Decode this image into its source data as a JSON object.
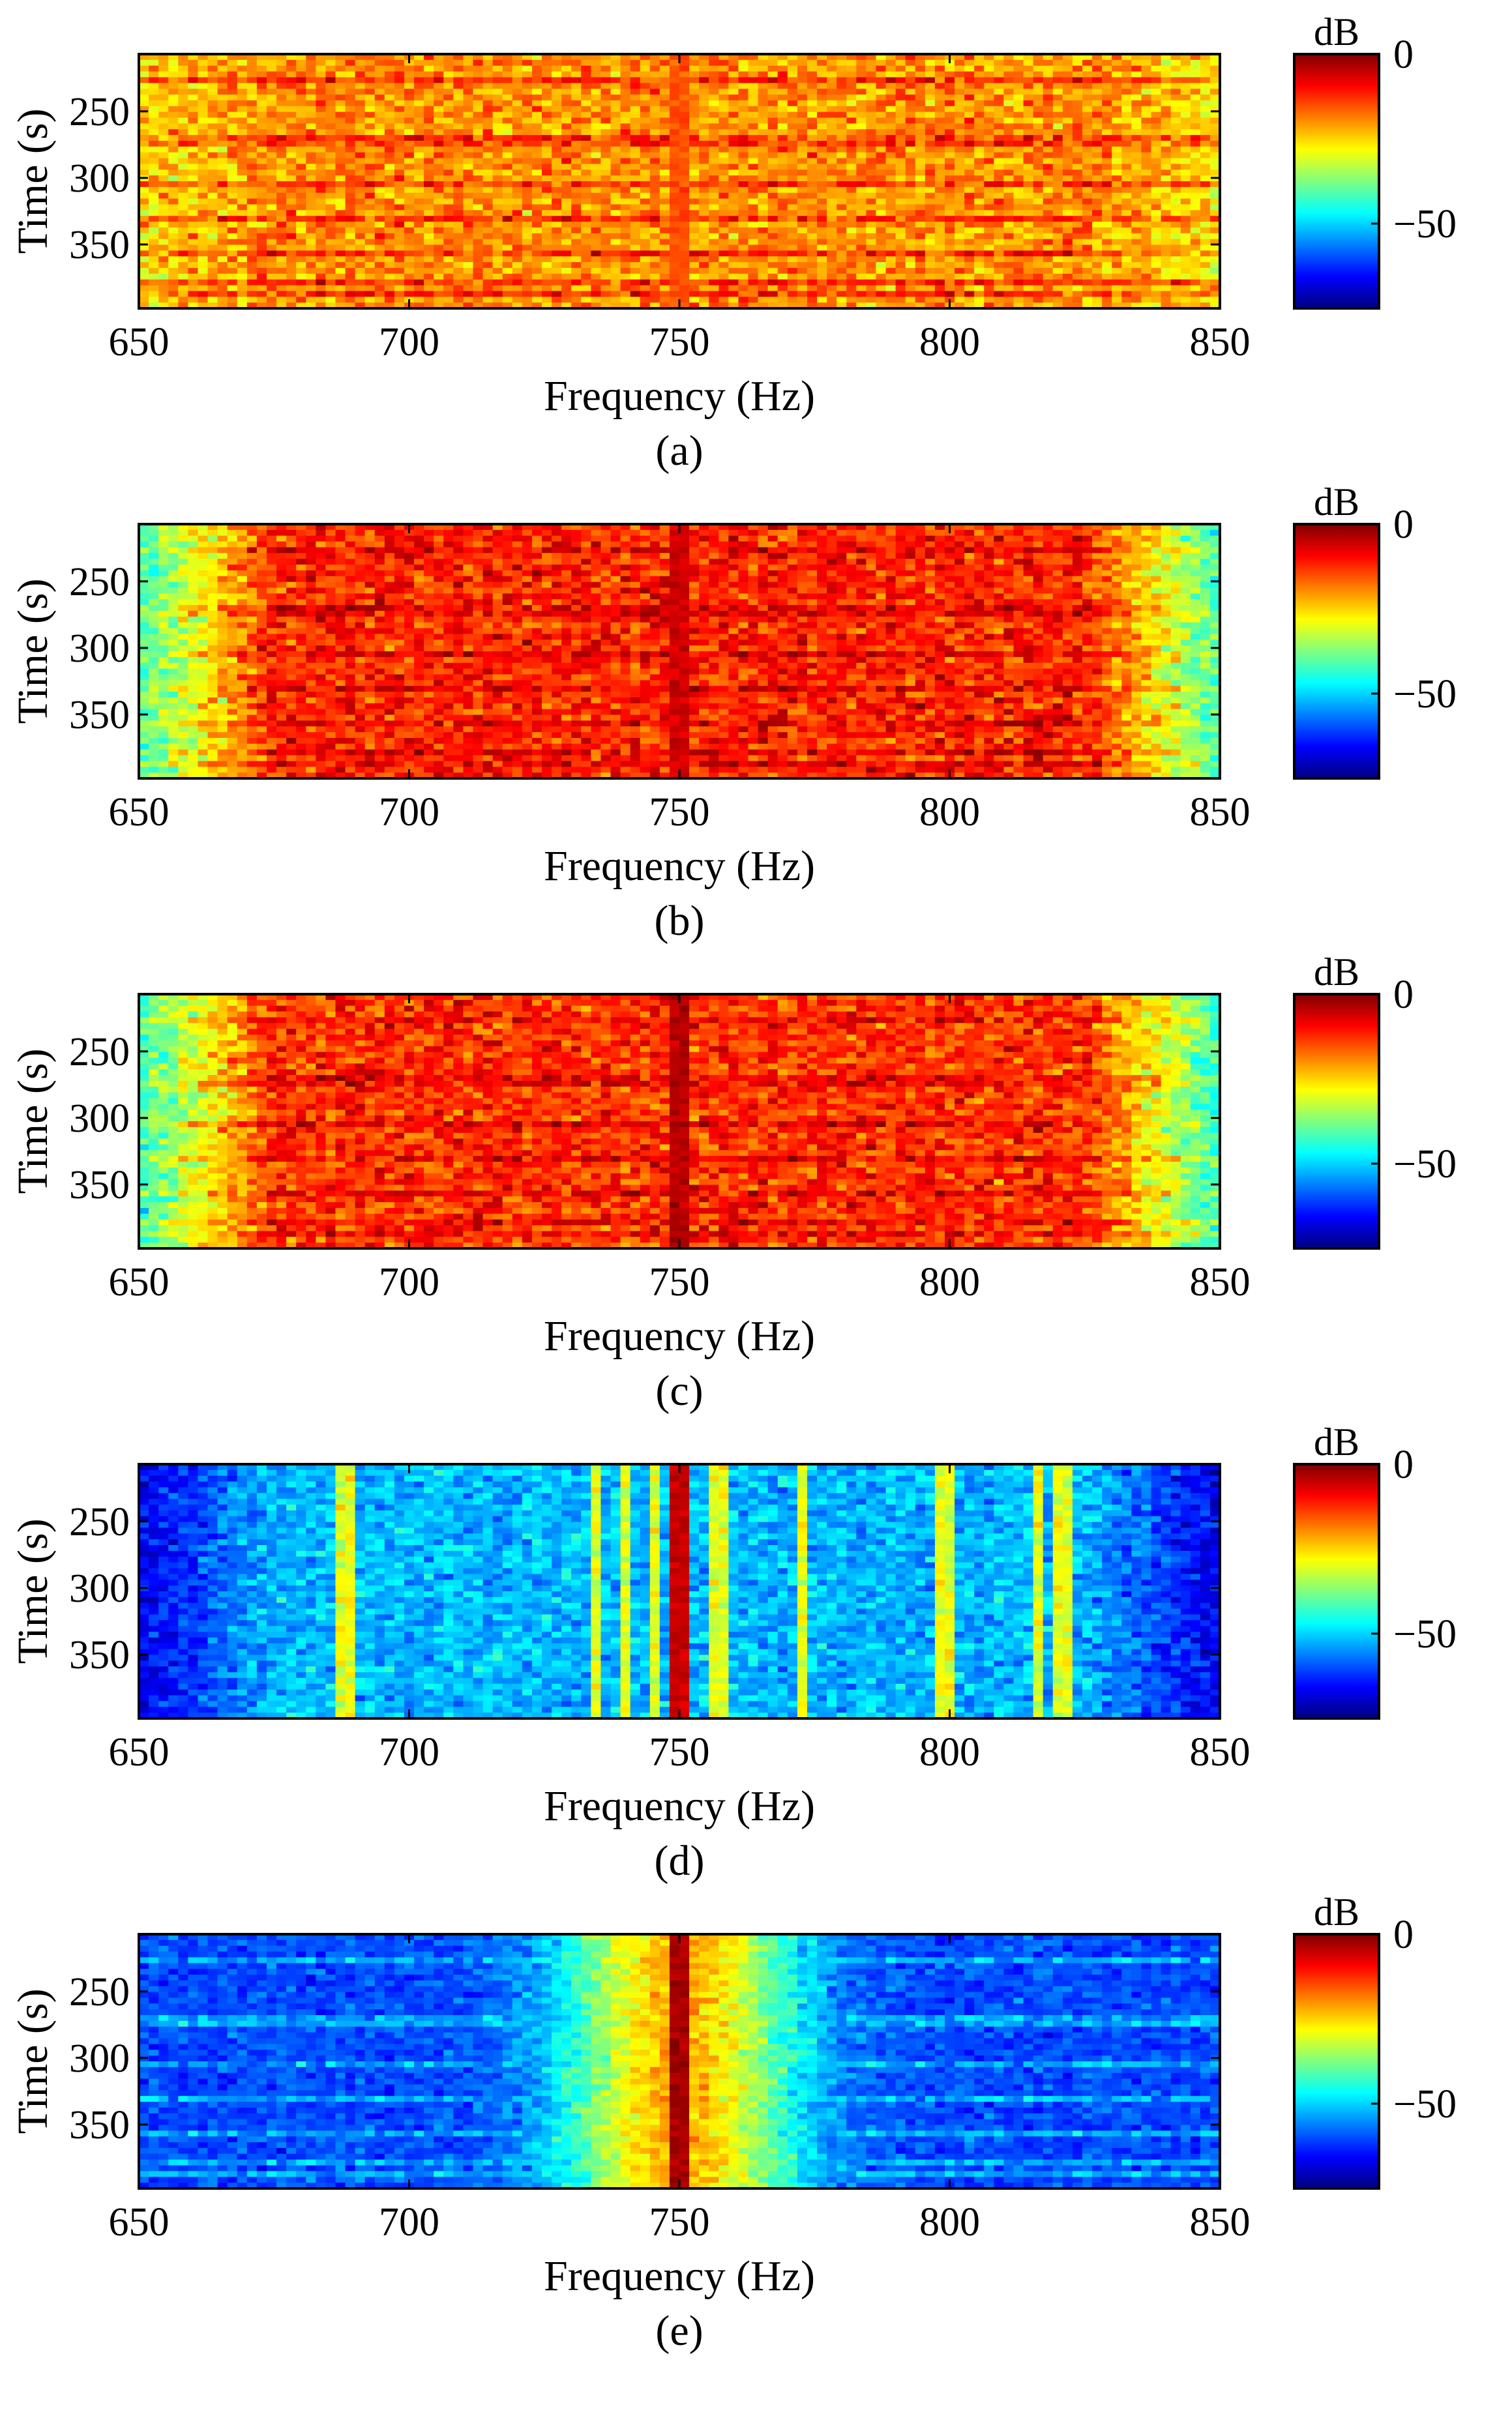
{
  "colors": {
    "colormap": [
      "#00007f",
      "#0000ff",
      "#007fff",
      "#00ffff",
      "#7fff7f",
      "#ffff00",
      "#ff7f00",
      "#ff0000",
      "#7f0000"
    ],
    "axis": "#000000",
    "background": "#ffffff"
  },
  "chart_data": [
    {
      "type": "heatmap",
      "caption": "(a)",
      "xlabel": "Frequency (Hz)",
      "ylabel": "Time (s)",
      "xlim": [
        650,
        850
      ],
      "ylim": [
        207,
        398
      ],
      "xticks": [
        650,
        700,
        750,
        800,
        850
      ],
      "yticks": [
        250,
        300,
        350
      ],
      "colorbar": {
        "unit": "dB",
        "clim": [
          -75,
          0
        ],
        "ticks": [
          0,
          -50
        ]
      },
      "grid": false,
      "description_of_values": {
        "base_db": -20,
        "noise_db": 6,
        "line_750_db": -15,
        "horizontal_bands_db": -8,
        "edge_rolloff_db": -6
      }
    },
    {
      "type": "heatmap",
      "caption": "(b)",
      "xlabel": "Frequency (Hz)",
      "ylabel": "Time (s)",
      "xlim": [
        650,
        850
      ],
      "ylim": [
        207,
        398
      ],
      "xticks": [
        650,
        700,
        750,
        800,
        850
      ],
      "yticks": [
        250,
        300,
        350
      ],
      "colorbar": {
        "unit": "dB",
        "clim": [
          -75,
          0
        ],
        "ticks": [
          0,
          -50
        ]
      },
      "grid": false,
      "description_of_values": {
        "base_db": -12,
        "noise_db": 6,
        "line_750_db": -6,
        "horizontal_bands_db": -5,
        "edge_rolloff_db": -30
      }
    },
    {
      "type": "heatmap",
      "caption": "(c)",
      "xlabel": "Frequency (Hz)",
      "ylabel": "Time (s)",
      "xlim": [
        650,
        850
      ],
      "ylim": [
        207,
        398
      ],
      "xticks": [
        650,
        700,
        750,
        800,
        850
      ],
      "yticks": [
        250,
        300,
        350
      ],
      "colorbar": {
        "unit": "dB",
        "clim": [
          -75,
          0
        ],
        "ticks": [
          0,
          -50
        ]
      },
      "grid": false,
      "description_of_values": {
        "base_db": -13,
        "noise_db": 6,
        "line_750_db": -4,
        "horizontal_bands_db": -5,
        "edge_rolloff_db": -30
      }
    },
    {
      "type": "heatmap",
      "caption": "(d)",
      "xlabel": "Frequency (Hz)",
      "ylabel": "Time (s)",
      "xlim": [
        650,
        850
      ],
      "ylim": [
        207,
        398
      ],
      "xticks": [
        650,
        700,
        750,
        800,
        850
      ],
      "yticks": [
        250,
        300,
        350
      ],
      "colorbar": {
        "unit": "dB",
        "clim": [
          -75,
          0
        ],
        "ticks": [
          0,
          -50
        ]
      },
      "grid": false,
      "vertical_lines_hz": [
        688,
        735,
        740,
        745,
        757,
        773,
        799,
        816,
        821
      ],
      "description_of_values": {
        "base_db": -52,
        "noise_db": 5,
        "line_750_db": -5,
        "vertical_lines_db": -30,
        "edge_rolloff_db": -15
      }
    },
    {
      "type": "heatmap",
      "caption": "(e)",
      "xlabel": "Frequency (Hz)",
      "ylabel": "Time (s)",
      "xlim": [
        650,
        850
      ],
      "ylim": [
        207,
        398
      ],
      "xticks": [
        650,
        700,
        750,
        800,
        850
      ],
      "yticks": [
        250,
        300,
        350
      ],
      "colorbar": {
        "unit": "dB",
        "clim": [
          -75,
          0
        ],
        "ticks": [
          0,
          -50
        ]
      },
      "grid": false,
      "description_of_values": {
        "base_db": -62,
        "noise_db": 5,
        "line_750_db": -3,
        "center_hump_db": -22,
        "horizontal_bands_db": -10
      }
    }
  ]
}
